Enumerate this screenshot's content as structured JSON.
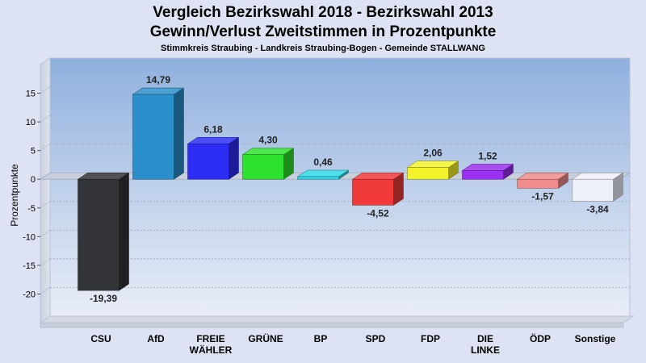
{
  "chart_data": {
    "type": "bar",
    "title": "Vergleich Bezirkswahl 2018 - Bezirkswahl 2013",
    "subtitle": "Gewinn/Verlust Zweitstimmen in Prozentpunkte",
    "caption": "Stimmkreis Straubing - Landkreis Straubing-Bogen - Gemeinde STALLWANG",
    "ylabel": "Prozentpunkte",
    "ylim": [
      -25,
      20
    ],
    "yticks": [
      15,
      10,
      5,
      0,
      -5,
      -10,
      -15,
      -20
    ],
    "grid": true,
    "categories": [
      "CSU",
      "AfD",
      "FREIE WÄHLER",
      "GRÜNE",
      "BP",
      "SPD",
      "FDP",
      "DIE LINKE",
      "ÖDP",
      "Sonstige"
    ],
    "values": [
      -19.39,
      14.79,
      6.18,
      4.3,
      0.46,
      -4.52,
      2.06,
      1.52,
      -1.57,
      -3.84
    ],
    "value_labels": [
      "-19,39",
      "14,79",
      "6,18",
      "4,30",
      "0,46",
      "-4,52",
      "2,06",
      "1,52",
      "-1,57",
      "-3,84"
    ],
    "colors": [
      "#333438",
      "#2a8fca",
      "#2d2df5",
      "#2ee12e",
      "#30d8e8",
      "#f03a3a",
      "#f2f22a",
      "#9b30f0",
      "#f08c8c",
      "#eef0f8"
    ]
  }
}
